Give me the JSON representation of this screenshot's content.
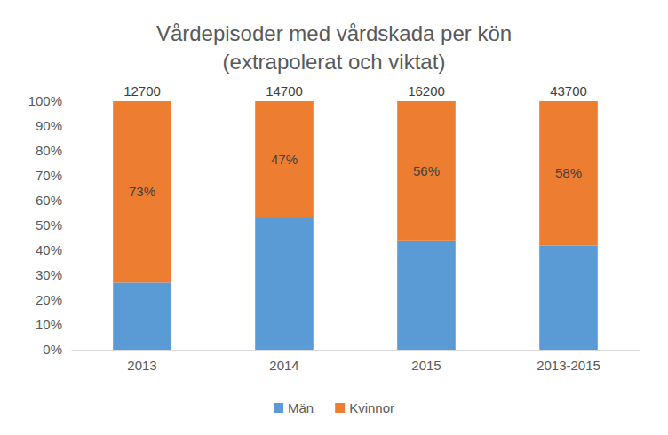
{
  "chart_data": {
    "type": "bar",
    "title": "Vårdepisoder med vårdskada per kön",
    "subtitle": "(extrapolerat och viktat)",
    "categories": [
      "2013",
      "2014",
      "2015",
      "2013-2015"
    ],
    "totals": [
      12700,
      14700,
      16200,
      43700
    ],
    "series": [
      {
        "name": "Män",
        "color": "#5b9bd5",
        "values": [
          27,
          53,
          44,
          42
        ],
        "data_labels": false
      },
      {
        "name": "Kvinnor",
        "color": "#ed7d31",
        "values": [
          73,
          47,
          56,
          58
        ],
        "data_labels": true,
        "value_labels": [
          "73%",
          "47%",
          "56%",
          "58%"
        ]
      }
    ],
    "stacked": true,
    "ylim": [
      0,
      100
    ],
    "yticks": [
      {
        "value": 0,
        "label": "0%"
      },
      {
        "value": 10,
        "label": "10%"
      },
      {
        "value": 20,
        "label": "20%"
      },
      {
        "value": 30,
        "label": "30%"
      },
      {
        "value": 40,
        "label": "40%"
      },
      {
        "value": 50,
        "label": "50%"
      },
      {
        "value": 60,
        "label": "60%"
      },
      {
        "value": 70,
        "label": "70%"
      },
      {
        "value": 80,
        "label": "80%"
      },
      {
        "value": 90,
        "label": "90%"
      },
      {
        "value": 100,
        "label": "100%"
      }
    ],
    "grid": false,
    "legend": "bottom"
  }
}
